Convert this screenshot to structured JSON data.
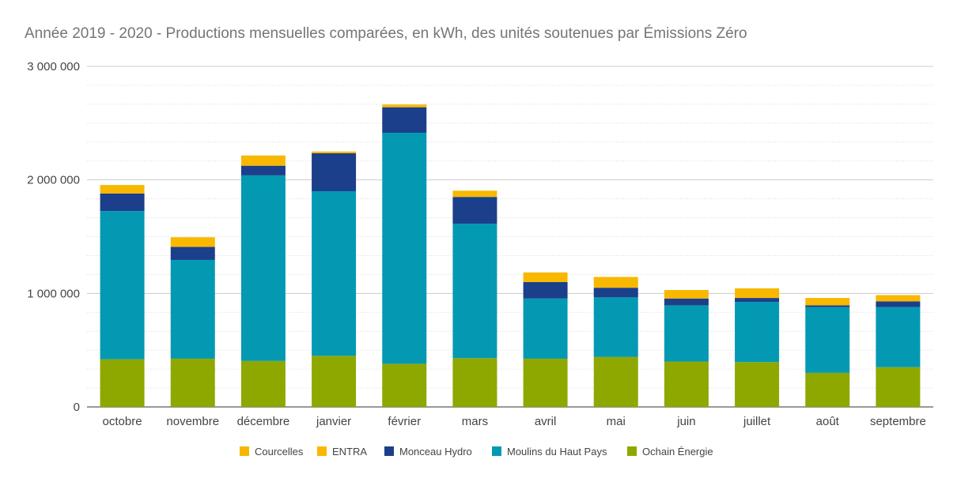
{
  "title": "Année 2019 - 2020 - Productions mensuelles comparées, en kWh, des unités soutenues par Émissions Zéro",
  "chart_data": {
    "type": "bar",
    "stacked": true,
    "title": "Année 2019 - 2020 - Productions mensuelles comparées, en kWh, des unités soutenues par Émissions Zéro",
    "xlabel": "",
    "ylabel": "",
    "ylim": [
      0,
      3000000
    ],
    "yticks": [
      0,
      1000000,
      2000000,
      3000000
    ],
    "ytick_labels": [
      "0",
      "1 000 000",
      "2 000 000",
      "3 000 000"
    ],
    "grid": true,
    "legend_position": "bottom",
    "categories": [
      "octobre",
      "novembre",
      "décembre",
      "janvier",
      "février",
      "mars",
      "avril",
      "mai",
      "juin",
      "juillet",
      "août",
      "septembre"
    ],
    "series": [
      {
        "name": "Ochain Énergie",
        "color": "#8ea800",
        "values": [
          420000,
          425000,
          405000,
          450000,
          380000,
          430000,
          425000,
          440000,
          400000,
          395000,
          300000,
          350000
        ]
      },
      {
        "name": "Moulins du Haut Pays",
        "color": "#0399b3",
        "values": [
          1305000,
          870000,
          1635000,
          1450000,
          2035000,
          1185000,
          530000,
          525000,
          495000,
          530000,
          580000,
          530000
        ]
      },
      {
        "name": "Monceau Hydro",
        "color": "#1b3f8a",
        "values": [
          155000,
          115000,
          85000,
          335000,
          225000,
          235000,
          145000,
          85000,
          60000,
          35000,
          15000,
          50000
        ]
      },
      {
        "name": "ENTRA",
        "color": "#f8b800",
        "values": [
          75000,
          85000,
          90000,
          10000,
          20000,
          55000,
          85000,
          95000,
          75000,
          85000,
          65000,
          55000
        ]
      },
      {
        "name": "Courcelles",
        "color": "#f9b500",
        "values": [
          0,
          0,
          0,
          5000,
          5000,
          0,
          0,
          0,
          0,
          0,
          0,
          0
        ]
      }
    ]
  }
}
